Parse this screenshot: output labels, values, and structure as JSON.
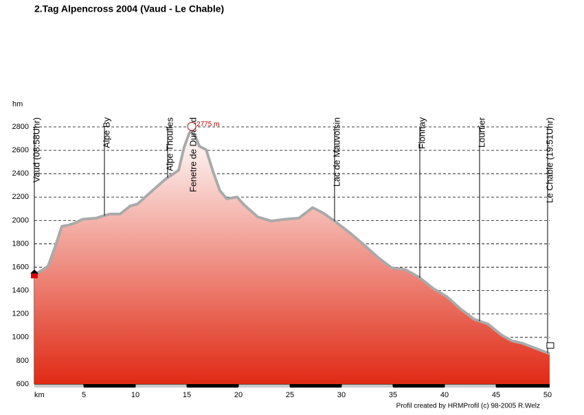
{
  "chart_data": {
    "type": "area",
    "title": "2.Tag Alpencross 2004 (Vaud - Le Chable)",
    "y_label": "hm",
    "x_label": "km",
    "footer": "Profil created by HRMProfil (c) 98-2005 R.Welz",
    "xlim": [
      0.2,
      50.2
    ],
    "ylim": [
      600,
      2800
    ],
    "xticks": [
      5,
      10,
      15,
      20,
      25,
      30,
      35,
      40,
      45,
      50
    ],
    "yticks": [
      600,
      800,
      1000,
      1200,
      1400,
      1600,
      1800,
      2000,
      2200,
      2400,
      2600,
      2800
    ],
    "grid": true,
    "series": [
      {
        "color": "#aaaaaa",
        "x": [
          0.2,
          0.87,
          1.53,
          2.2,
          2.87,
          3.53,
          4.2,
          4.87,
          6.2,
          7.53,
          8.53,
          9.53,
          10.2,
          11.53,
          12.87,
          14.2,
          14.73,
          15.2,
          15.47,
          15.87,
          16.2,
          16.87,
          17.53,
          18.2,
          18.87,
          19.87,
          20.53,
          21.87,
          23.2,
          24.53,
          25.87,
          27.2,
          28.2,
          29.33,
          30.87,
          32.2,
          33.53,
          34.87,
          36.2,
          37.6,
          38.87,
          40.2,
          41.53,
          42.87,
          44.2,
          45.53,
          46.53,
          47.53,
          48.87,
          50.2
        ],
        "values": [
          1540,
          1570,
          1610,
          1770,
          1950,
          1960,
          1980,
          2010,
          2020,
          2055,
          2055,
          2125,
          2140,
          2245,
          2350,
          2430,
          2625,
          2740,
          2775,
          2710,
          2635,
          2605,
          2420,
          2255,
          2185,
          2200,
          2135,
          2030,
          1995,
          2010,
          2020,
          2110,
          2065,
          1995,
          1890,
          1790,
          1685,
          1595,
          1580,
          1510,
          1420,
          1350,
          1245,
          1155,
          1115,
          1020,
          970,
          950,
          905,
          860
        ]
      }
    ],
    "waypoints": [
      {
        "label": "Vaud (08:58Uhr)",
        "x": 0.2
      },
      {
        "label": "Alpe By",
        "x": 7.0
      },
      {
        "label": "Alpe Thoulles",
        "x": 13.13
      },
      {
        "label": "Fenetre de Durand",
        "x": 15.4
      },
      {
        "label": "Lac de Mauvoisin",
        "x": 29.33
      },
      {
        "label": "Fionnay",
        "x": 37.6
      },
      {
        "label": "Lourtier",
        "x": 43.4
      },
      {
        "label": "Le Chable (19:51Uhr)",
        "x": 50.0
      }
    ],
    "annotation": {
      "text": "2775 m",
      "x": 15.47,
      "y": 2775
    }
  }
}
